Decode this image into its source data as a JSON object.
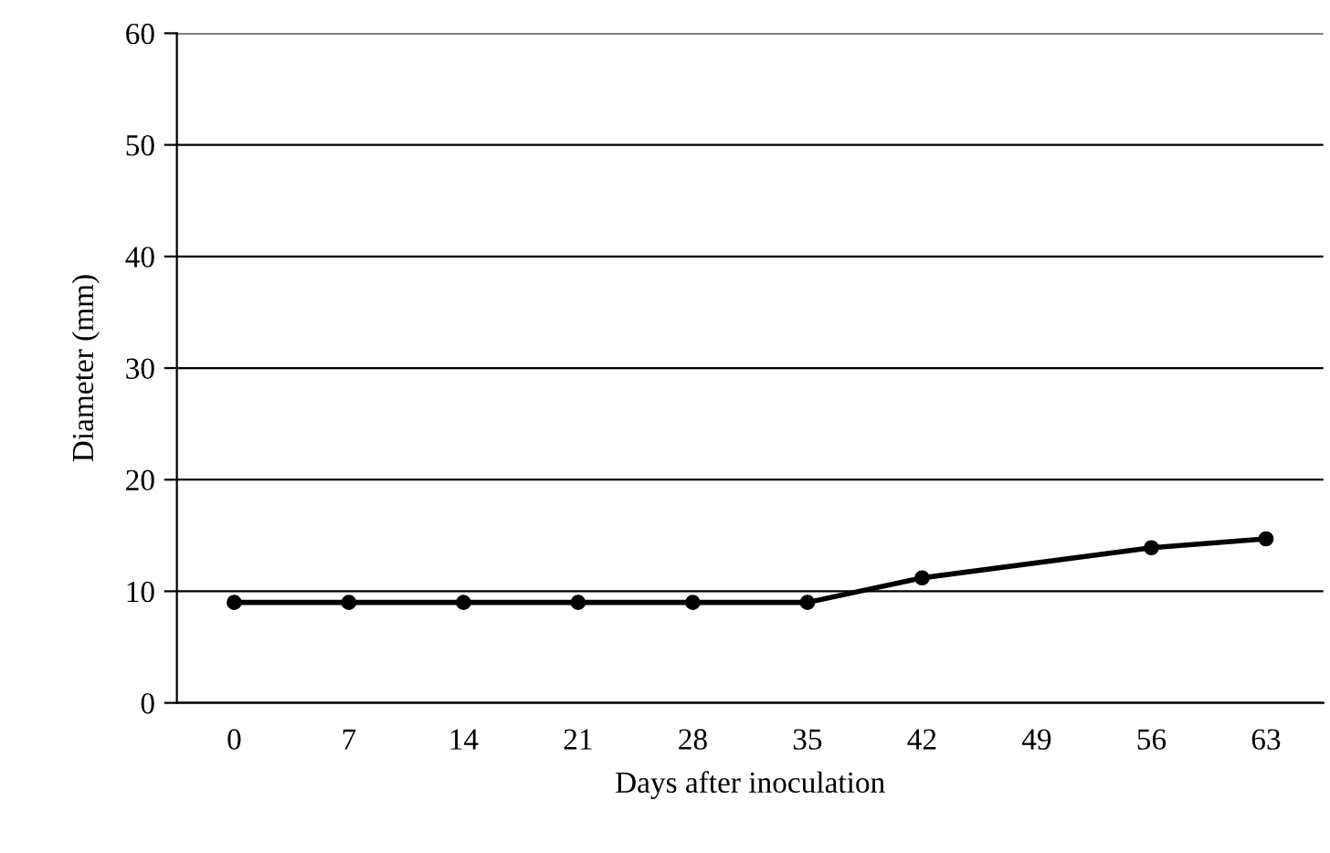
{
  "chart_data": {
    "type": "line",
    "xlabel": "Days after inoculation",
    "ylabel": "Diameter (mm)",
    "x": [
      0,
      7,
      14,
      21,
      28,
      35,
      42,
      56,
      63
    ],
    "series": [
      {
        "color": "#000000",
        "values": [
          9,
          9,
          9,
          9,
          9,
          9,
          11.2,
          13.9,
          14.7
        ]
      }
    ],
    "xlim": [
      -3.5,
      66.5
    ],
    "xticks": [
      0,
      7,
      14,
      21,
      28,
      35,
      42,
      49,
      56,
      63
    ],
    "ylim": [
      0,
      60
    ],
    "yticks": [
      0,
      10,
      20,
      30,
      40,
      50,
      60
    ],
    "grid": "y",
    "marker": "circle",
    "line_style": "solid"
  }
}
